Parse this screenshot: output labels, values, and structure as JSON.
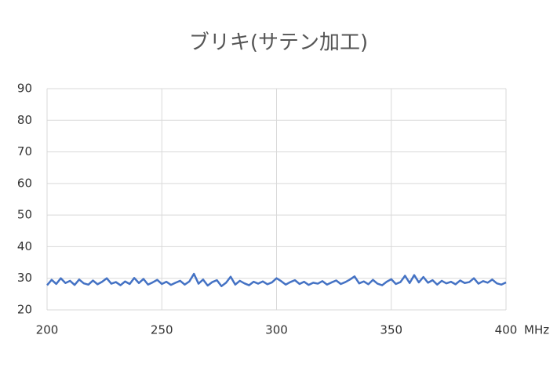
{
  "chart_data": {
    "type": "line",
    "title": "ブリキ(サテン加工)",
    "xlabel": "MHz",
    "x": [
      200,
      202,
      204,
      206,
      208,
      210,
      212,
      214,
      216,
      218,
      220,
      222,
      224,
      226,
      228,
      230,
      232,
      234,
      236,
      238,
      240,
      242,
      244,
      246,
      248,
      250,
      252,
      254,
      256,
      258,
      260,
      262,
      264,
      266,
      268,
      270,
      272,
      274,
      276,
      278,
      280,
      282,
      284,
      286,
      288,
      290,
      292,
      294,
      296,
      298,
      300,
      302,
      304,
      306,
      308,
      310,
      312,
      314,
      316,
      318,
      320,
      322,
      324,
      326,
      328,
      330,
      332,
      334,
      336,
      338,
      340,
      342,
      344,
      346,
      348,
      350,
      352,
      354,
      356,
      358,
      360,
      362,
      364,
      366,
      368,
      370,
      372,
      374,
      376,
      378,
      380,
      382,
      384,
      386,
      388,
      390,
      392,
      394,
      396,
      398,
      400
    ],
    "series": [
      {
        "color": "#4472c4",
        "values": [
          27.8,
          29.5,
          28.2,
          30.0,
          28.5,
          29.2,
          27.9,
          29.6,
          28.4,
          28.0,
          29.3,
          28.1,
          28.9,
          30.0,
          28.3,
          28.8,
          27.8,
          29.0,
          28.2,
          30.1,
          28.5,
          29.8,
          28.0,
          28.7,
          29.5,
          28.2,
          28.9,
          27.9,
          28.6,
          29.2,
          28.0,
          29.0,
          31.4,
          28.3,
          29.6,
          27.7,
          28.8,
          29.4,
          27.5,
          28.6,
          30.5,
          28.0,
          29.2,
          28.4,
          27.8,
          28.9,
          28.3,
          29.0,
          28.1,
          28.7,
          30.0,
          29.1,
          28.0,
          28.8,
          29.4,
          28.2,
          28.9,
          27.9,
          28.6,
          28.3,
          29.1,
          28.0,
          28.7,
          29.3,
          28.2,
          28.8,
          29.6,
          30.6,
          28.4,
          29.0,
          28.1,
          29.5,
          28.3,
          27.8,
          28.9,
          29.7,
          28.2,
          28.8,
          30.8,
          28.5,
          31.0,
          28.7,
          30.4,
          28.6,
          29.4,
          28.0,
          29.2,
          28.4,
          28.9,
          28.1,
          29.3,
          28.5,
          28.8,
          30.0,
          28.3,
          29.1,
          28.6,
          29.6,
          28.4,
          28.0,
          28.7
        ]
      }
    ],
    "xlim": [
      200,
      400
    ],
    "xticks": [
      200,
      250,
      300,
      350,
      400
    ],
    "ylim": [
      20,
      90
    ],
    "yticks": [
      20,
      30,
      40,
      50,
      60,
      70,
      80,
      90
    ],
    "grid": true
  }
}
